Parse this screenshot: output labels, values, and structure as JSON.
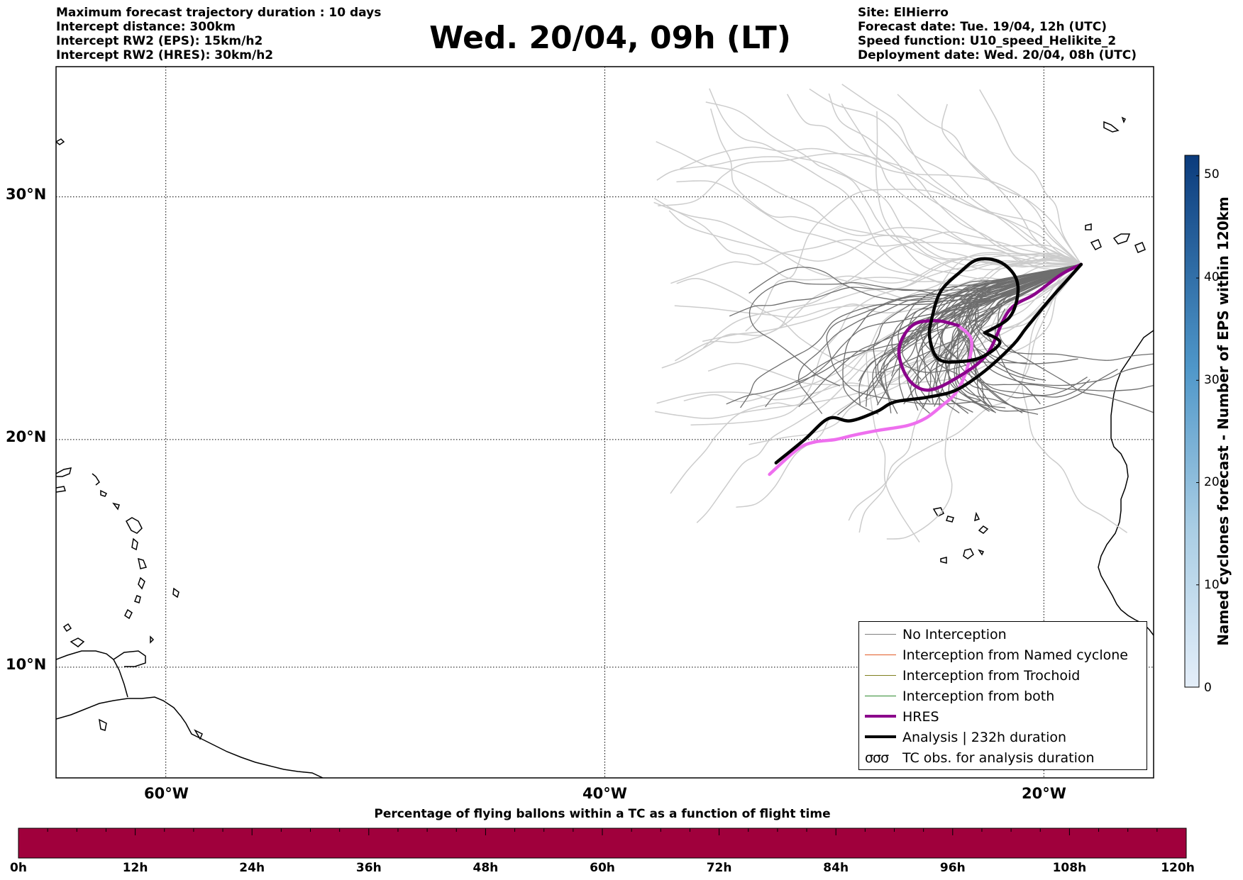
{
  "header_left": [
    "Maximum forecast trajectory duration : 10 days",
    "Intercept distance: 300km",
    "Intercept RW2 (EPS):  15km/h2",
    "Intercept RW2 (HRES): 30km/h2"
  ],
  "title": "Wed. 20/04, 09h (LT)",
  "header_right": [
    "Site: ElHierro",
    "Forecast date: Tue. 19/04, 12h (UTC)",
    "Speed function: U10_speed_Helikite_2",
    "Deployment date: Wed. 20/04, 08h (UTC)"
  ],
  "map": {
    "lon_range": [
      -65,
      -15
    ],
    "lat_range": [
      5,
      35
    ],
    "grid": true,
    "lat_labels": [
      "30°N",
      "20°N",
      "10°N"
    ],
    "lon_labels": [
      "60°W",
      "40°W",
      "20°W"
    ]
  },
  "tracks": {
    "analysis": [
      [
        -32.2,
        19.0
      ],
      [
        -30.9,
        20.0
      ],
      [
        -29.8,
        20.9
      ],
      [
        -28.8,
        20.8
      ],
      [
        -27.6,
        21.2
      ],
      [
        -26.8,
        21.6
      ],
      [
        -25.3,
        21.8
      ],
      [
        -24.0,
        22.1
      ],
      [
        -22.7,
        22.9
      ],
      [
        -21.4,
        24.0
      ],
      [
        -20.8,
        24.7
      ],
      [
        -19.7,
        25.9
      ],
      [
        -18.7,
        26.9
      ],
      [
        -18.3,
        27.3
      ]
    ],
    "analysis_loop": [
      [
        -22.7,
        24.5
      ],
      [
        -21.6,
        25.1
      ],
      [
        -21.2,
        26.0
      ],
      [
        -21.3,
        26.8
      ],
      [
        -22.0,
        27.4
      ],
      [
        -23.0,
        27.5
      ],
      [
        -23.8,
        27.0
      ],
      [
        -24.7,
        26.2
      ],
      [
        -25.1,
        25.1
      ],
      [
        -25.2,
        24.3
      ],
      [
        -24.8,
        23.4
      ],
      [
        -23.8,
        23.3
      ],
      [
        -22.8,
        23.5
      ],
      [
        -22.0,
        24.1
      ]
    ],
    "hres": [
      [
        -32.5,
        18.5
      ],
      [
        -31.2,
        19.6
      ],
      [
        -30.4,
        19.9
      ],
      [
        -29.5,
        20.0
      ],
      [
        -28.6,
        20.2
      ],
      [
        -27.5,
        20.4
      ],
      [
        -26.2,
        20.6
      ],
      [
        -25.4,
        20.9
      ],
      [
        -24.7,
        21.4
      ],
      [
        -24.0,
        22.0
      ],
      [
        -23.5,
        23.0
      ],
      [
        -23.3,
        24.2
      ],
      [
        -23.9,
        24.8
      ],
      [
        -24.9,
        25.0
      ],
      [
        -26.0,
        24.8
      ],
      [
        -26.6,
        23.8
      ],
      [
        -26.2,
        22.6
      ],
      [
        -25.3,
        22.1
      ],
      [
        -24.0,
        22.6
      ],
      [
        -22.6,
        23.6
      ],
      [
        -21.6,
        25.4
      ],
      [
        -20.4,
        26.1
      ],
      [
        -19.2,
        26.9
      ],
      [
        -18.3,
        27.3
      ]
    ],
    "hres_faded": [
      [
        -32.5,
        18.5
      ],
      [
        -31.2,
        19.6
      ],
      [
        -30.4,
        19.9
      ],
      [
        -29.5,
        20.0
      ],
      [
        -28.6,
        20.2
      ],
      [
        -27.5,
        20.4
      ],
      [
        -26.2,
        20.6
      ],
      [
        -25.4,
        20.9
      ],
      [
        -24.7,
        21.4
      ],
      [
        -24.0,
        22.0
      ],
      [
        -23.5,
        23.0
      ],
      [
        -23.3,
        24.2
      ],
      [
        -23.9,
        24.8
      ]
    ]
  },
  "colors": {
    "no_interception": "#7f7f7f",
    "named_cyclone": "#e25a26",
    "trochoid": "#808020",
    "both": "#2f8a2f",
    "hres": "#8b008b",
    "hres_faded": "#ee6fee",
    "analysis": "#000000",
    "light_tracks": "#cccccc",
    "bottom_bar": "#a0003c"
  },
  "legend": [
    {
      "label": "No Interception",
      "style": "thin",
      "color": "#7f7f7f"
    },
    {
      "label": "Interception from Named cyclone",
      "style": "thin",
      "color": "#e25a26"
    },
    {
      "label": "Interception from Trochoid",
      "style": "thin",
      "color": "#808020"
    },
    {
      "label": "Interception from both",
      "style": "thin",
      "color": "#2f8a2f"
    },
    {
      "label": "HRES",
      "style": "thick",
      "color": "#8b008b"
    },
    {
      "label": "Analysis | 232h duration",
      "style": "thick",
      "color": "#000000"
    },
    {
      "label": "TC obs. for analysis duration",
      "style": "symbol",
      "symbol": "σσσ"
    }
  ],
  "colorbar": {
    "title": "Named cyclones forecast - Number of EPS within 120km",
    "ticks": [
      "50",
      "40",
      "30",
      "20",
      "10",
      "0"
    ],
    "range": [
      0,
      52
    ]
  },
  "bottom_bar": {
    "title": "Percentage of flying ballons within a TC as a function of flight time",
    "ticks": [
      "0h",
      "12h",
      "24h",
      "36h",
      "48h",
      "60h",
      "72h",
      "84h",
      "96h",
      "108h",
      "120h"
    ]
  }
}
